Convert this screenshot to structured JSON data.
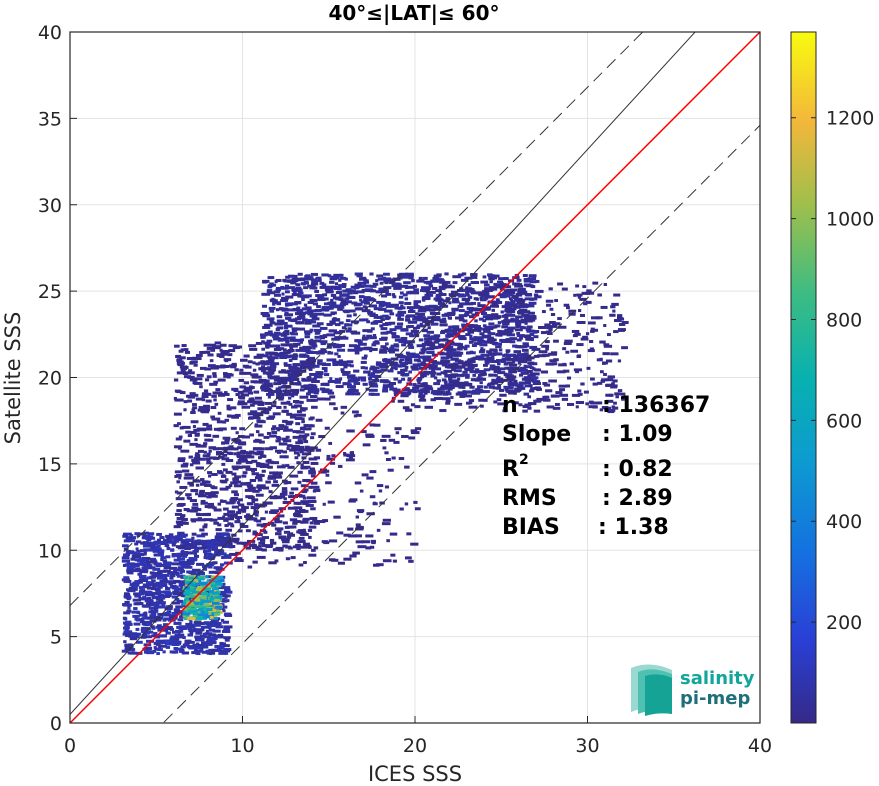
{
  "chart_data": {
    "type": "heatmap",
    "title": "40°≤|LAT|≤ 60°",
    "xlabel": "ICES SSS",
    "ylabel": "Satellite SSS",
    "xlim": [
      0,
      40
    ],
    "ylim": [
      0,
      40
    ],
    "xticks": [
      "0",
      "10",
      "20",
      "30",
      "40"
    ],
    "yticks": [
      "0",
      "5",
      "10",
      "15",
      "20",
      "25",
      "30",
      "35",
      "40"
    ],
    "grid": true,
    "colorbar": {
      "range": [
        0,
        1370
      ],
      "ticks": [
        "200",
        "400",
        "600",
        "800",
        "1000",
        "1200"
      ],
      "colormap": "parula"
    },
    "reference_lines": {
      "identity": {
        "slope": 1,
        "intercept": 0,
        "color": "#ff0000"
      },
      "regression": {
        "slope": 1.09,
        "intercept": 0.5,
        "color": "#333333"
      },
      "upper_bound": {
        "slope": 1,
        "intercept": 6.8,
        "style": "dashed"
      },
      "lower_bound": {
        "slope": 1,
        "intercept": -5.4,
        "style": "dashed"
      }
    },
    "density_regions": [
      {
        "x": [
          11,
          27
        ],
        "y": [
          19,
          26
        ],
        "density": 40
      },
      {
        "x": [
          6,
          14
        ],
        "y": [
          10,
          22
        ],
        "density": 15
      },
      {
        "x": [
          3,
          9
        ],
        "y": [
          4,
          11
        ],
        "density": 80
      },
      {
        "x": [
          6.5,
          8.5
        ],
        "y": [
          6,
          8.5
        ],
        "density": 900
      },
      {
        "x": [
          9,
          20
        ],
        "y": [
          9,
          19
        ],
        "density": 5
      },
      {
        "x": [
          20,
          32
        ],
        "y": [
          18,
          25.5
        ],
        "density": 10
      }
    ],
    "stats": [
      {
        "label": "n",
        "value": ": 136367"
      },
      {
        "label": "Slope",
        "value": ": 1.09"
      },
      {
        "label": "R",
        "sup": "2",
        "value": ": 0.82"
      },
      {
        "label": "RMS",
        "value": ": 2.89"
      },
      {
        "label": "BIAS",
        "value": ": 1.38"
      }
    ]
  },
  "logo": {
    "line1": "salinity",
    "line2": "pi-mep"
  }
}
